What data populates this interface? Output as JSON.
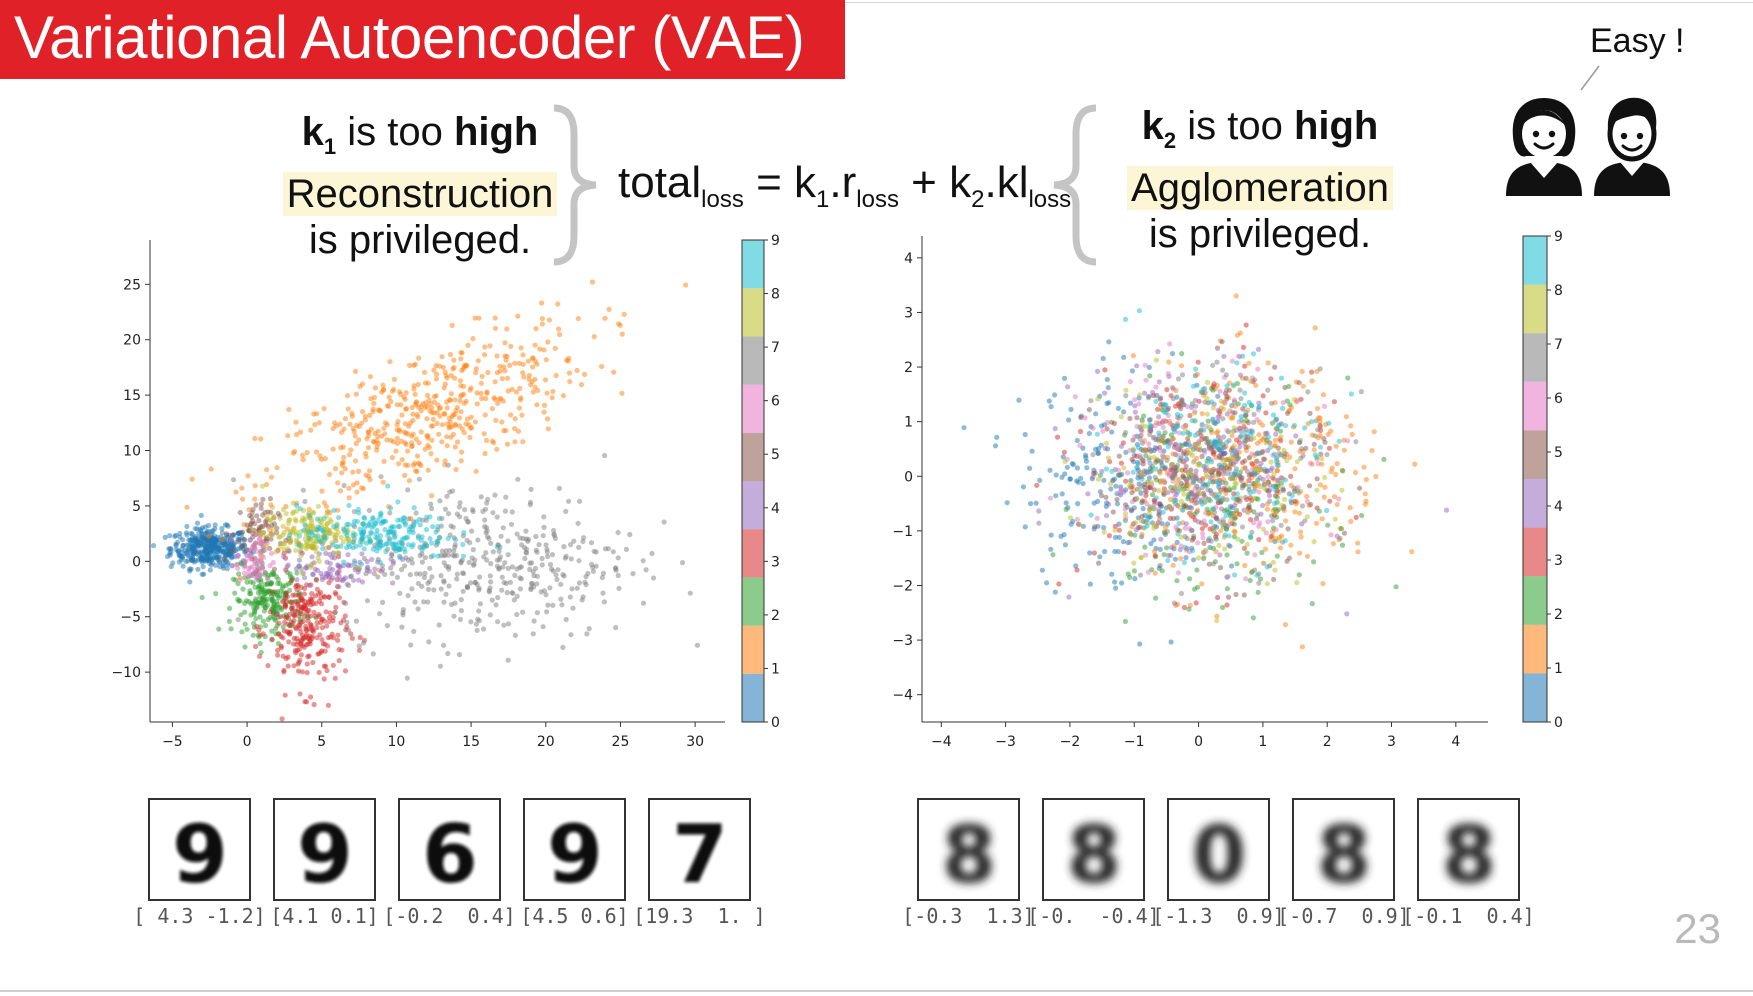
{
  "title": "Variational Autoencoder (VAE)",
  "easy_label": "Easy !",
  "left_heading": {
    "k": "k",
    "k_sub": "1",
    "mid": " is too ",
    "strong": "high",
    "line2": "Reconstruction",
    "line3": "is privileged."
  },
  "right_heading": {
    "k": "k",
    "k_sub": "2",
    "mid": " is too ",
    "strong": "high",
    "line2": "Agglomeration",
    "line3": "is privileged."
  },
  "formula": {
    "total": "total",
    "loss1": "loss",
    "eq": " = k",
    "k1sub": "1",
    "r": ".r",
    "loss2": "loss",
    "plus": " + k",
    "k2sub": "2",
    "kl": ".kl",
    "loss3": "loss"
  },
  "page_number": "23",
  "colors": {
    "title_bg": "#e02127",
    "classes": [
      "#1f77b4",
      "#ff7f0e",
      "#2ca02c",
      "#d62728",
      "#9467bd",
      "#8c564b",
      "#e377c2",
      "#7f7f7f",
      "#bcbd22",
      "#17becf"
    ]
  },
  "icons": [
    "woman-icon",
    "man-icon",
    "speech-line-icon"
  ],
  "chart_data": [
    {
      "type": "scatter",
      "title": "",
      "xlabel": "",
      "ylabel": "",
      "xlim": [
        -6.5,
        32
      ],
      "ylim": [
        -14.5,
        29
      ],
      "xticks": [
        "−5",
        "0",
        "5",
        "10",
        "15",
        "20",
        "25",
        "30"
      ],
      "xtick_values": [
        -5,
        0,
        5,
        10,
        15,
        20,
        25,
        30
      ],
      "yticks": [
        "−10",
        "−5",
        "0",
        "5",
        "10",
        "15",
        "20",
        "25"
      ],
      "ytick_values": [
        -10,
        -5,
        0,
        5,
        10,
        15,
        20,
        25
      ],
      "colorbar": {
        "ticks": [
          "0",
          "1",
          "2",
          "3",
          "4",
          "5",
          "6",
          "7",
          "8",
          "9"
        ]
      },
      "clusters": [
        {
          "label": 0,
          "cx": -2.5,
          "cy": 1.2,
          "sx": 1.3,
          "sy": 0.9,
          "n": 400
        },
        {
          "label": 1,
          "cx": 12,
          "cy": 13,
          "sx": 5.5,
          "sy": 3.0,
          "slope": 0.55,
          "n": 500
        },
        {
          "label": 2,
          "cx": 1.5,
          "cy": -3.5,
          "sx": 1.2,
          "sy": 1.5,
          "n": 220
        },
        {
          "label": 3,
          "cx": 4.0,
          "cy": -6.0,
          "sx": 1.3,
          "sy": 2.8,
          "n": 260
        },
        {
          "label": 4,
          "cx": 6,
          "cy": -0.5,
          "sx": 2,
          "sy": 0.8,
          "n": 90
        },
        {
          "label": 5,
          "cx": 0.5,
          "cy": 2.5,
          "sx": 0.8,
          "sy": 1.5,
          "n": 80
        },
        {
          "label": 6,
          "cx": 0.5,
          "cy": 0,
          "sx": 0.6,
          "sy": 1.2,
          "n": 60
        },
        {
          "label": 7,
          "cx": 16,
          "cy": 0,
          "sx": 5.0,
          "sy": 3.5,
          "n": 420
        },
        {
          "label": 8,
          "cx": 4,
          "cy": 2.5,
          "sx": 1.5,
          "sy": 1.2,
          "n": 160
        },
        {
          "label": 9,
          "cx": 8.5,
          "cy": 2.5,
          "sx": 2.5,
          "sy": 1.2,
          "n": 200
        }
      ],
      "samples": [
        {
          "digit": "9",
          "coord": "[ 4.3 -1.2]"
        },
        {
          "digit": "9",
          "coord": "[4.1 0.1]"
        },
        {
          "digit": "6",
          "coord": "[-0.2  0.4]"
        },
        {
          "digit": "9",
          "coord": "[4.5 0.6]"
        },
        {
          "digit": "7",
          "coord": "[19.3  1. ]"
        }
      ]
    },
    {
      "type": "scatter",
      "title": "",
      "xlabel": "",
      "ylabel": "",
      "xlim": [
        -4.3,
        4.5
      ],
      "ylim": [
        -4.5,
        4.4
      ],
      "xticks": [
        "−4",
        "−3",
        "−2",
        "−1",
        "0",
        "1",
        "2",
        "3",
        "4"
      ],
      "xtick_values": [
        -4,
        -3,
        -2,
        -1,
        0,
        1,
        2,
        3,
        4
      ],
      "yticks": [
        "−4",
        "−3",
        "−2",
        "−1",
        "0",
        "1",
        "2",
        "3",
        "4"
      ],
      "ytick_values": [
        -4,
        -3,
        -2,
        -1,
        0,
        1,
        2,
        3,
        4
      ],
      "colorbar": {
        "ticks": [
          "0",
          "1",
          "2",
          "3",
          "4",
          "5",
          "6",
          "7",
          "8",
          "9"
        ]
      },
      "clusters": [
        {
          "label": 0,
          "cx": -1.0,
          "cy": 0,
          "sx": 0.9,
          "sy": 1.0,
          "n": 260
        },
        {
          "label": 1,
          "cx": 1.0,
          "cy": 0,
          "sx": 1.0,
          "sy": 1.0,
          "n": 260
        },
        {
          "label": 2,
          "cx": 0.2,
          "cy": -0.3,
          "sx": 0.9,
          "sy": 1.0,
          "n": 160
        },
        {
          "label": 3,
          "cx": 0,
          "cy": 0,
          "sx": 0.9,
          "sy": 1.0,
          "n": 160
        },
        {
          "label": 4,
          "cx": 0,
          "cy": 0.2,
          "sx": 0.9,
          "sy": 0.9,
          "n": 150
        },
        {
          "label": 5,
          "cx": 0.2,
          "cy": 0,
          "sx": 0.9,
          "sy": 0.9,
          "n": 150
        },
        {
          "label": 6,
          "cx": 0,
          "cy": 0.2,
          "sx": 0.9,
          "sy": 0.9,
          "n": 150
        },
        {
          "label": 7,
          "cx": 0.3,
          "cy": 0.3,
          "sx": 0.9,
          "sy": 0.9,
          "n": 150
        },
        {
          "label": 8,
          "cx": 0.1,
          "cy": 0,
          "sx": 0.9,
          "sy": 0.9,
          "n": 150
        },
        {
          "label": 9,
          "cx": 0.2,
          "cy": 0.3,
          "sx": 0.9,
          "sy": 0.9,
          "n": 150
        }
      ],
      "samples": [
        {
          "digit": "8",
          "coord": "[-0.3  1.3]"
        },
        {
          "digit": "8",
          "coord": "[-0.  -0.4]"
        },
        {
          "digit": "0",
          "coord": "[-1.3  0.9]"
        },
        {
          "digit": "8",
          "coord": "[-0.7  0.9]"
        },
        {
          "digit": "8",
          "coord": "[-0.1  0.4]"
        }
      ]
    }
  ]
}
